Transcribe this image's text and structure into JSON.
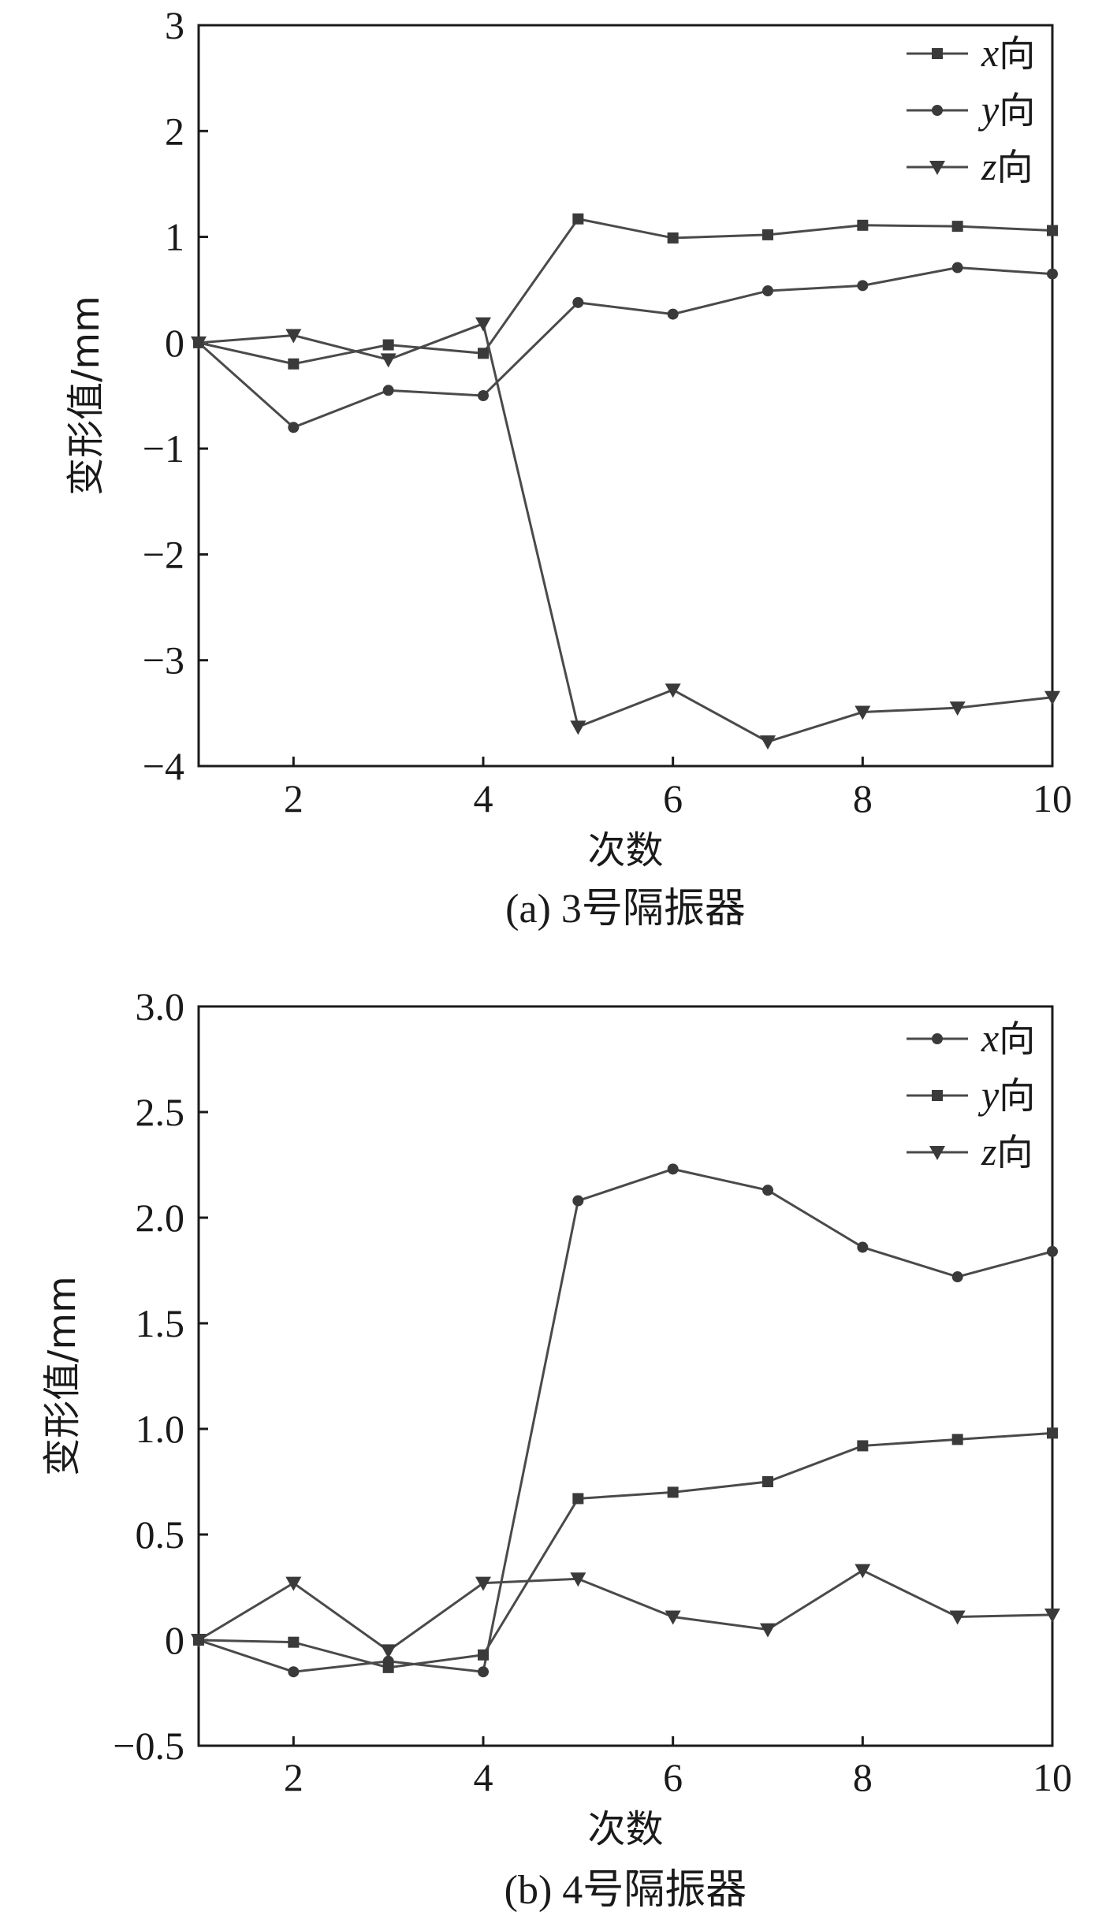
{
  "colors": {
    "axis": "#1a1a1a",
    "series": "#4a4a4a",
    "marker": "#3a3a3a",
    "background": "#ffffff"
  },
  "chart_data": [
    {
      "type": "line",
      "caption": "(a) 3号隔振器",
      "xlabel": "次数",
      "ylabel": "变形值/mm",
      "xlim": [
        1,
        10
      ],
      "ylim": [
        -4,
        3
      ],
      "xticks": [
        2,
        4,
        6,
        8,
        10
      ],
      "yticks": [
        -4,
        -3,
        -2,
        -1,
        0,
        1,
        2,
        3
      ],
      "ytick_labels": [
        "−4",
        "−3",
        "−2",
        "−1",
        "0",
        "1",
        "2",
        "3"
      ],
      "x": [
        1,
        2,
        3,
        4,
        5,
        6,
        7,
        8,
        9,
        10
      ],
      "legend_position": "top-right",
      "series": [
        {
          "name": "x向",
          "axis_letter": "x",
          "suffix": "向",
          "marker": "square",
          "values": [
            0,
            -0.2,
            -0.02,
            -0.1,
            1.17,
            0.99,
            1.02,
            1.11,
            1.1,
            1.06
          ]
        },
        {
          "name": "y向",
          "axis_letter": "y",
          "suffix": "向",
          "marker": "circle",
          "values": [
            0,
            -0.8,
            -0.45,
            -0.5,
            0.38,
            0.27,
            0.49,
            0.54,
            0.71,
            0.65
          ]
        },
        {
          "name": "z向",
          "axis_letter": "z",
          "suffix": "向",
          "marker": "triangle-down",
          "values": [
            0,
            0.07,
            -0.16,
            0.18,
            -3.63,
            -3.28,
            -3.77,
            -3.49,
            -3.45,
            -3.35
          ]
        }
      ]
    },
    {
      "type": "line",
      "caption": "(b) 4号隔振器",
      "xlabel": "次数",
      "ylabel": "变形值/mm",
      "xlim": [
        1,
        10
      ],
      "ylim": [
        -0.5,
        3.0
      ],
      "xticks": [
        2,
        4,
        6,
        8,
        10
      ],
      "yticks": [
        -0.5,
        0,
        0.5,
        1.0,
        1.5,
        2.0,
        2.5,
        3.0
      ],
      "ytick_labels": [
        "−0.5",
        "0",
        "0.5",
        "1.0",
        "1.5",
        "2.0",
        "2.5",
        "3.0"
      ],
      "x": [
        1,
        2,
        3,
        4,
        5,
        6,
        7,
        8,
        9,
        10
      ],
      "legend_position": "top-right",
      "series": [
        {
          "name": "x向",
          "axis_letter": "x",
          "suffix": "向",
          "marker": "circle",
          "values": [
            0,
            -0.15,
            -0.1,
            -0.15,
            2.08,
            2.23,
            2.13,
            1.86,
            1.72,
            1.84
          ]
        },
        {
          "name": "y向",
          "axis_letter": "y",
          "suffix": "向",
          "marker": "square",
          "values": [
            0,
            -0.01,
            -0.13,
            -0.07,
            0.67,
            0.7,
            0.75,
            0.92,
            0.95,
            0.98
          ]
        },
        {
          "name": "z向",
          "axis_letter": "z",
          "suffix": "向",
          "marker": "triangle-down",
          "values": [
            0,
            0.27,
            -0.05,
            0.27,
            0.29,
            0.11,
            0.05,
            0.33,
            0.11,
            0.12
          ]
        }
      ]
    }
  ]
}
